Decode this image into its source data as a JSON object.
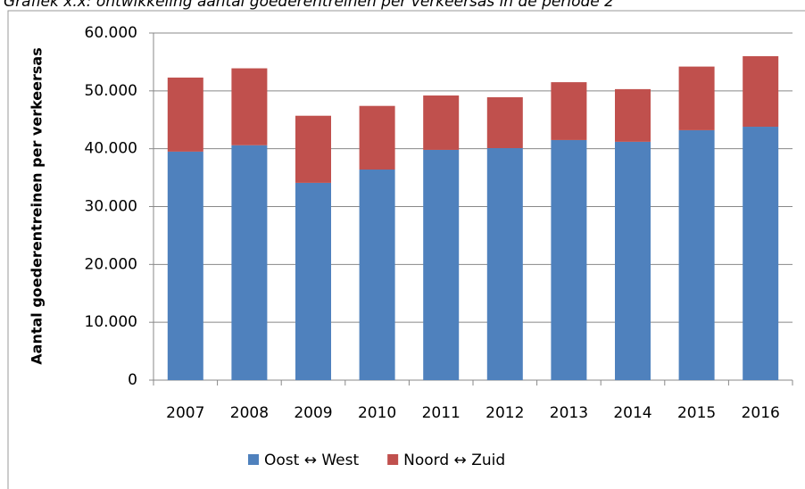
{
  "chart_data": {
    "type": "stacked_bar",
    "title": "Grafiek x.x: ontwikkeling aantal goederentreinen per verkeersas in de periode 2",
    "y_label": "Aantal goederentreinen per verkeersas",
    "categories": [
      "2007",
      "2008",
      "2009",
      "2010",
      "2011",
      "2012",
      "2013",
      "2014",
      "2015",
      "2016"
    ],
    "series": [
      {
        "name": "Oost ↔ West",
        "color": "#4f81bd",
        "values": [
          39500,
          40600,
          34100,
          36400,
          39800,
          40100,
          41500,
          41200,
          43200,
          43800
        ]
      },
      {
        "name": "Noord ↔ Zuid",
        "color": "#c0504d",
        "values": [
          12800,
          13300,
          11600,
          11000,
          9400,
          8800,
          10000,
          9100,
          11000,
          12200
        ]
      }
    ],
    "ylim": [
      0,
      60000
    ],
    "yticks": [
      0,
      {
        "value": 10000,
        "label": "10.000"
      },
      {
        "value": 20000,
        "label": "20.000"
      },
      {
        "value": 30000,
        "label": "30.000"
      },
      {
        "value": 40000,
        "label": "40.000"
      },
      {
        "value": 50000,
        "label": "50.000"
      },
      {
        "value": 60000,
        "label": "60.000"
      }
    ],
    "grid": true,
    "legend": "bottom"
  }
}
